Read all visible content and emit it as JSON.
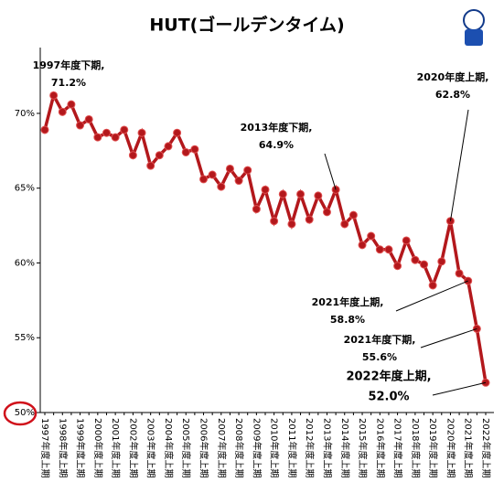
{
  "chart_data": {
    "type": "line",
    "title": "HUT(ゴールデンタイム)",
    "categories": [
      "1997年度上期",
      null,
      "1998年度上期",
      null,
      "1999年度上期",
      null,
      "2000年度上期",
      null,
      "2001年度上期",
      null,
      "2002年度上期",
      null,
      "2003年度上期",
      null,
      "2004年度上期",
      null,
      "2005年度上期",
      null,
      "2006年度上期",
      null,
      "2007年度上期",
      null,
      "2008年度上期",
      null,
      "2009年度上期",
      null,
      "2010年度上期",
      null,
      "2011年度上期",
      null,
      "2012年度上期",
      null,
      "2013年度上期",
      null,
      "2014年度上期",
      null,
      "2015年度上期",
      null,
      "2016年度上期",
      null,
      "2017年度上期",
      null,
      "2018年度上期",
      null,
      "2019年度上期",
      null,
      "2020年度上期",
      null,
      "2021年度上期",
      null,
      "2022年度上期"
    ],
    "series": [
      {
        "name": "HUT",
        "color": "#b3181c",
        "values": [
          68.9,
          71.2,
          70.1,
          70.6,
          69.2,
          69.6,
          68.4,
          68.7,
          68.4,
          68.9,
          67.2,
          68.7,
          66.5,
          67.2,
          67.8,
          68.7,
          67.4,
          67.6,
          65.6,
          65.9,
          65.1,
          66.3,
          65.5,
          66.2,
          63.6,
          64.9,
          62.8,
          64.6,
          62.6,
          64.6,
          62.9,
          64.5,
          63.4,
          64.9,
          62.6,
          63.2,
          61.2,
          61.8,
          60.9,
          60.9,
          59.8,
          61.5,
          60.2,
          59.9,
          58.5,
          60.1,
          62.8,
          59.3,
          58.8,
          55.6,
          52.0
        ],
        "value_labels": [
          null,
          "71.2%",
          null,
          null,
          null,
          null,
          null,
          null,
          null,
          null,
          null,
          null,
          null,
          null,
          null,
          null,
          null,
          null,
          null,
          null,
          null,
          null,
          null,
          null,
          null,
          null,
          null,
          null,
          null,
          null,
          null,
          null,
          null,
          "64.9%",
          null,
          null,
          null,
          null,
          null,
          null,
          null,
          null,
          null,
          null,
          null,
          null,
          "62.8%",
          null,
          "58.8%",
          "55.6%",
          "52.0%"
        ],
        "annotations": [
          null,
          "1997年度下期,",
          null,
          null,
          null,
          null,
          null,
          null,
          null,
          null,
          null,
          null,
          null,
          null,
          null,
          null,
          null,
          null,
          null,
          null,
          null,
          null,
          null,
          null,
          null,
          null,
          null,
          null,
          null,
          null,
          null,
          null,
          null,
          "2013年度下期,",
          null,
          null,
          null,
          null,
          null,
          null,
          null,
          null,
          null,
          null,
          null,
          null,
          "2020年度上期,",
          null,
          "2021年度上期,",
          "2021年度下期,",
          "2022年度上期,"
        ]
      }
    ],
    "ylim": [
      50,
      74.4
    ],
    "yticks": [
      {
        "value": 50,
        "label": "50%"
      },
      {
        "value": 55,
        "label": "55%"
      },
      {
        "value": 60,
        "label": "60%"
      },
      {
        "value": 65,
        "label": "65%"
      },
      {
        "value": 70,
        "label": "70%"
      }
    ],
    "grid": false
  }
}
